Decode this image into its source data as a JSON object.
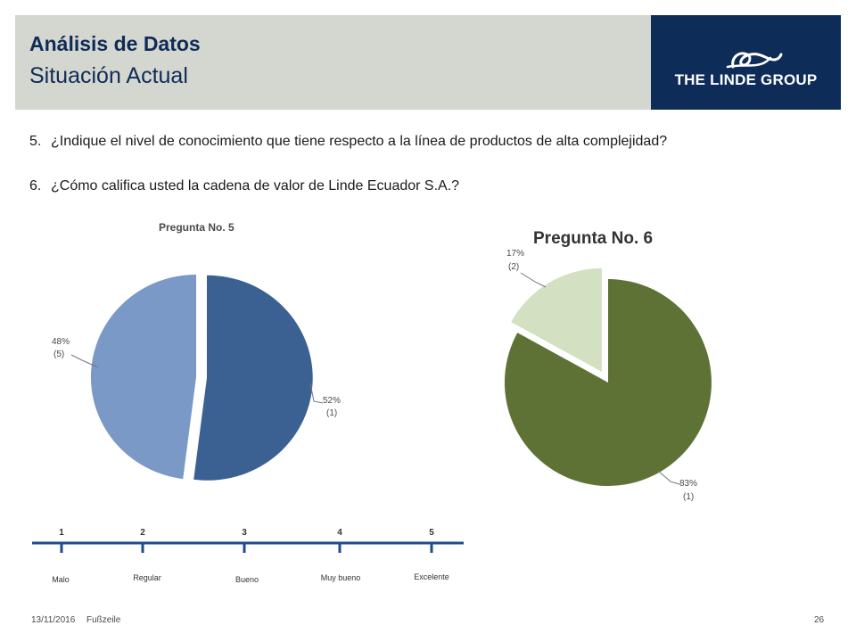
{
  "header": {
    "title": "Análisis de Datos",
    "subtitle": "Situación Actual",
    "logo_text": "THE LINDE GROUP",
    "logo_mark": "L"
  },
  "questions": [
    {
      "number": "5.",
      "text": "¿Indique el nivel de conocimiento que tiene respecto a la línea de productos de alta complejidad?"
    },
    {
      "number": "6.",
      "text": "¿Cómo califica usted  la cadena de valor de Linde Ecuador S.A.?"
    }
  ],
  "chart_data": [
    {
      "type": "pie",
      "title": "Pregunta No. 5",
      "slices": [
        {
          "percent": 52,
          "label": "52%",
          "count_label": "(1)",
          "color": "#3b6193"
        },
        {
          "percent": 48,
          "label": "48%",
          "count_label": "(5)",
          "color": "#7a99c6"
        }
      ]
    },
    {
      "type": "pie",
      "title": "Pregunta No. 6",
      "slices": [
        {
          "percent": 83,
          "label": "83%",
          "count_label": "(1)",
          "color": "#5f7236"
        },
        {
          "percent": 17,
          "label": "17%",
          "count_label": "(2)",
          "color": "#d3e0c2"
        }
      ]
    }
  ],
  "scale": {
    "color": "#1c4c8c",
    "points": [
      {
        "number": "1",
        "label": "Malo"
      },
      {
        "number": "2",
        "label": "Regular"
      },
      {
        "number": "3",
        "label": "Bueno"
      },
      {
        "number": "4",
        "label": "Muy bueno"
      },
      {
        "number": "5",
        "label": "Excelente"
      }
    ]
  },
  "footer": {
    "date": "13/11/2016",
    "note": "Fußzeile",
    "page": "26"
  },
  "colors": {
    "header_band": "#d4d6d0",
    "brand_navy": "#0e2c58",
    "title": "#0f2b57"
  }
}
